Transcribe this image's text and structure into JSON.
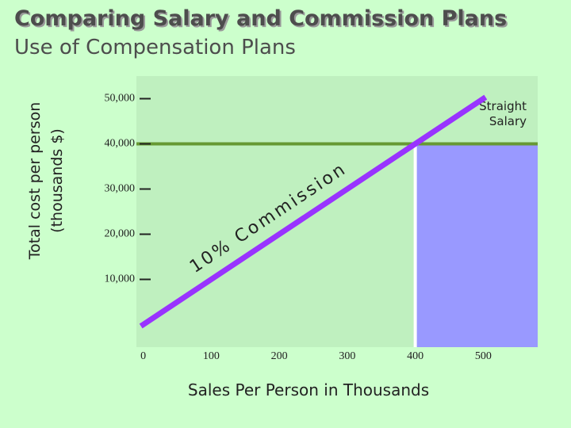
{
  "chart_data": {
    "type": "line",
    "title": "Comparing Salary and Commission Plans",
    "subtitle": "Use of Compensation Plans",
    "y_label": [
      "Total cost per person",
      "(thousands $)"
    ],
    "x_label": "Sales Per Person in Thousands",
    "xlim": [
      -10,
      580
    ],
    "ylim": [
      -5000,
      55000
    ],
    "xticks": [
      0,
      100,
      200,
      300,
      400,
      500
    ],
    "yticks": [
      {
        "value": 10000,
        "label": "10,000"
      },
      {
        "value": 20000,
        "label": "20,000"
      },
      {
        "value": 30000,
        "label": "30,000"
      },
      {
        "value": 40000,
        "label": "40,000"
      },
      {
        "value": 50000,
        "label": "50,000"
      }
    ],
    "series": [
      {
        "name": "10% Commission",
        "color": "#9933ff",
        "x": [
          0,
          500
        ],
        "values": [
          0,
          50000
        ]
      }
    ],
    "salary_line": {
      "name": [
        "Straight",
        "Salary"
      ],
      "value": 40000,
      "color": "#669933"
    },
    "break_even_x": 400,
    "shade_color": "#9999ff"
  }
}
